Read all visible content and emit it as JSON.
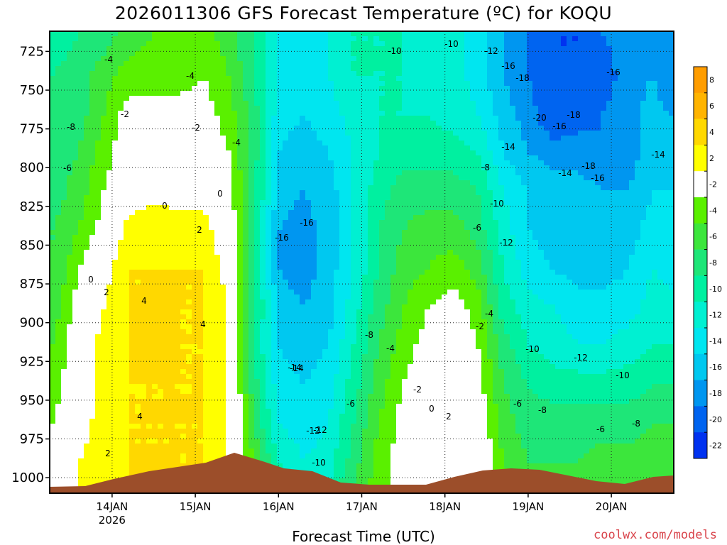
{
  "chart_data": {
    "type": "heatmap",
    "title": "2026011306 GFS Forecast Temperature (ºC) for KOQU",
    "xlabel": "Forecast Time (UTC)",
    "ylabel": "",
    "source_credit": "coolwx.com/models",
    "y_axis": {
      "ticks": [
        725,
        750,
        775,
        800,
        825,
        850,
        875,
        900,
        925,
        950,
        975,
        1000
      ],
      "range": [
        712,
        1010
      ],
      "inverted": true
    },
    "x_axis": {
      "ticks": [
        "14JAN",
        "15JAN",
        "16JAN",
        "17JAN",
        "18JAN",
        "19JAN",
        "20JAN"
      ],
      "year_label": "2026",
      "range_days": [
        13.25,
        20.75
      ]
    },
    "grid": true,
    "colorbar": {
      "levels": [
        8,
        6,
        4,
        2,
        -2,
        -4,
        -6,
        -8,
        -10,
        -12,
        -14,
        -16,
        -18,
        -20,
        -22
      ],
      "labels": [
        "8",
        "6",
        "4",
        "2",
        "-2",
        "-4",
        "-6",
        "-8",
        "-10",
        "-12",
        "-14",
        "-16",
        "-18",
        "-20",
        "-22"
      ],
      "colors": [
        "#ff9d00",
        "#ffb400",
        "#ffd800",
        "#ffff00",
        "#ffffff",
        "#5af000",
        "#3ce63c",
        "#1ee678",
        "#00f0a0",
        "#00f0d2",
        "#00e6f0",
        "#00c8f0",
        "#0096f0",
        "#0064f0",
        "#0032f0"
      ],
      "placement": "right"
    },
    "temperature_field": {
      "x_days": [
        13.3,
        13.6,
        13.9,
        14.2,
        14.5,
        14.8,
        15.1,
        15.4,
        15.7,
        16.0,
        16.3,
        16.6,
        16.9,
        17.2,
        17.5,
        17.8,
        18.1,
        18.4,
        18.7,
        19.0,
        19.3,
        19.6,
        19.9,
        20.2,
        20.5,
        20.7
      ],
      "y_hpa": [
        715,
        740,
        765,
        790,
        815,
        840,
        865,
        890,
        915,
        940,
        965,
        990,
        1005
      ],
      "values_c": [
        [
          -9,
          -8,
          -7,
          -5,
          -4,
          -4,
          -3,
          -5,
          -8,
          -12,
          -13,
          -12,
          -10,
          -10,
          -10,
          -11,
          -11,
          -13,
          -16,
          -18,
          -20,
          -20,
          -18,
          -17,
          -17,
          -18
        ],
        [
          -8,
          -7,
          -5,
          -3,
          -3,
          -3,
          -2,
          -4,
          -8,
          -12,
          -13,
          -12,
          -10,
          -10,
          -10,
          -11,
          -11,
          -13,
          -16,
          -18,
          -20,
          -20,
          -19,
          -17,
          -16,
          -18
        ],
        [
          -8,
          -7,
          -4,
          -1,
          -1,
          -1,
          -1,
          -3,
          -7,
          -13,
          -14,
          -13,
          -11,
          -10,
          -10,
          -10,
          -11,
          -12,
          -15,
          -17,
          -20,
          -19,
          -18,
          -17,
          -15,
          -16
        ],
        [
          -7,
          -6,
          -3,
          0,
          0,
          0,
          0,
          -2,
          -7,
          -14,
          -15,
          -14,
          -12,
          -10,
          -9,
          -9,
          -9,
          -10,
          -14,
          -16,
          -17,
          -17,
          -18,
          -17,
          -15,
          -15
        ],
        [
          -7,
          -5,
          -2,
          0,
          1,
          1,
          1,
          -1,
          -7,
          -15,
          -16,
          -15,
          -12,
          -9,
          -7,
          -7,
          -7,
          -8,
          -12,
          -14,
          -15,
          -15,
          -16,
          -16,
          -14,
          -14
        ],
        [
          -6,
          -4,
          -1,
          3,
          4,
          3,
          3,
          0,
          -7,
          -16,
          -17,
          -15,
          -12,
          -8,
          -6,
          -5,
          -5,
          -7,
          -11,
          -14,
          -15,
          -15,
          -15,
          -15,
          -13,
          -13
        ],
        [
          -6,
          -2,
          1,
          4,
          4,
          4,
          4,
          1,
          -7,
          -16,
          -17,
          -15,
          -12,
          -8,
          -5,
          -4,
          -3,
          -5,
          -10,
          -13,
          -14,
          -15,
          -15,
          -14,
          -12,
          -13
        ],
        [
          -5,
          -1,
          2,
          4,
          4,
          4,
          4,
          2,
          -7,
          -15,
          -16,
          -15,
          -11,
          -7,
          -4,
          -2,
          -1,
          -3,
          -9,
          -11,
          -12,
          -13,
          -13,
          -13,
          -11,
          -11
        ],
        [
          -4,
          0,
          3,
          4,
          5,
          4,
          4,
          2,
          -8,
          -14,
          -15,
          -14,
          -10,
          -6,
          -3,
          -1,
          0,
          -2,
          -7,
          -10,
          -11,
          -12,
          -12,
          -11,
          -10,
          -10
        ],
        [
          -3,
          0,
          3,
          4,
          4,
          4,
          4,
          2,
          -7,
          -13,
          -14,
          -13,
          -9,
          -5,
          -2,
          0,
          1,
          -1,
          -6,
          -8,
          -9,
          -9,
          -9,
          -9,
          -8,
          -8
        ],
        [
          -2,
          1,
          3,
          4,
          4,
          4,
          4,
          2,
          -6,
          -12,
          -13,
          -12,
          -8,
          -4,
          -1,
          0,
          2,
          0,
          -5,
          -7,
          -7,
          -7,
          -7,
          -7,
          -6,
          -6
        ],
        [
          -1,
          2,
          3,
          4,
          4,
          4,
          4,
          2,
          -4,
          -10,
          -12,
          -11,
          -7,
          -3,
          -1,
          1,
          2,
          1,
          -4,
          -6,
          -6,
          -6,
          -5,
          -5,
          -5,
          -5
        ],
        [
          0,
          2,
          3,
          4,
          4,
          4,
          4,
          2,
          -4,
          -9,
          -11,
          -10,
          -6,
          -3,
          -1,
          1,
          2,
          1,
          -3,
          -5,
          -5,
          -5,
          -5,
          -5,
          -4,
          -4
        ]
      ]
    },
    "contour_labels": [
      "-4",
      "-4",
      "-8",
      "-6",
      "-2",
      "-2",
      "-4",
      "0",
      "0",
      "2",
      "0",
      "2",
      "4",
      "4",
      "4",
      "2",
      "-16",
      "-16",
      "-14",
      "-12",
      "-10",
      "-10",
      "-10",
      "-12",
      "-16",
      "-18",
      "-20",
      "-16",
      "-18",
      "-16",
      "-14",
      "-14",
      "-18",
      "-16",
      "-14",
      "-8",
      "-10",
      "-6",
      "-12",
      "-4",
      "-2",
      "-8",
      "-4",
      "-6",
      "-2",
      "0",
      "2",
      "-10",
      "-12",
      "-14",
      "-12",
      "-10",
      "-6",
      "-8",
      "-6",
      "-8"
    ]
  }
}
